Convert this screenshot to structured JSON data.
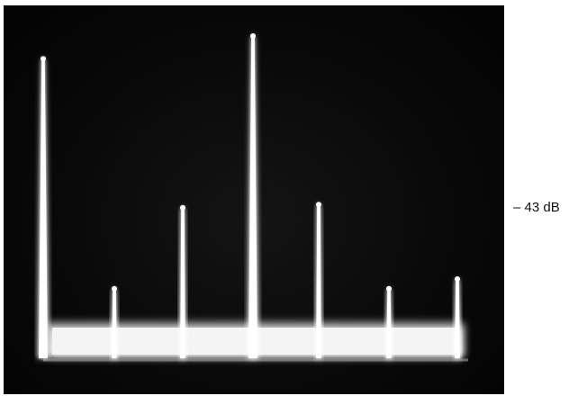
{
  "figure": {
    "description_colors": {
      "screen_background": "#050505",
      "trace_color": "#ffffff",
      "page_background": "#ffffff"
    },
    "side_label": "– 43 dB",
    "spectral_lines": [
      {
        "name": "line-1",
        "relative_level": 0.93
      },
      {
        "name": "line-2",
        "relative_level": 0.22
      },
      {
        "name": "line-3",
        "relative_level": 0.47
      },
      {
        "name": "line-4",
        "relative_level": 1.0
      },
      {
        "name": "line-5",
        "relative_level": 0.48
      },
      {
        "name": "line-6",
        "relative_level": 0.22
      },
      {
        "name": "line-7",
        "relative_level": 0.25
      }
    ]
  }
}
